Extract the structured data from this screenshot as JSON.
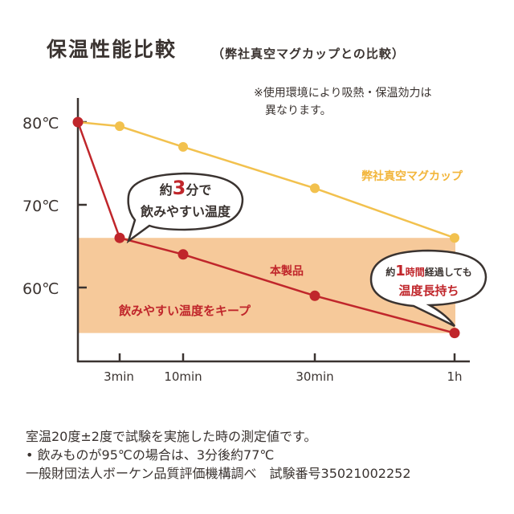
{
  "title": "保温性能比較",
  "subtitle": "（弊社真空マグカップとの比較）",
  "note_lines": [
    "※使用環境により吸熱・保温効力は",
    "異なります。"
  ],
  "colors": {
    "product": "#c0262b",
    "competitor": "#f2c14e",
    "zone": "#f6c99a",
    "axis": "#3a3330"
  },
  "chart_data": {
    "type": "line",
    "title": "保温性能比較",
    "x_categories": [
      "",
      "3min",
      "10min",
      "30min",
      "1h"
    ],
    "y_ticks": [
      "80℃",
      "70℃",
      "60℃"
    ],
    "ylim": [
      54,
      80
    ],
    "series": [
      {
        "name": "弊社真空マグカップ",
        "values": [
          80,
          79.5,
          77,
          72,
          66
        ]
      },
      {
        "name": "本製品",
        "values": [
          80,
          66,
          64,
          59,
          54.5
        ]
      }
    ],
    "zone": {
      "from": 54.5,
      "to": 66,
      "label": "飲みやすい温度をキープ"
    },
    "callout_left": {
      "line1_pre": "約",
      "line1_num": "3",
      "line1_post": "分で",
      "line2": "飲みやすい温度"
    },
    "callout_right": {
      "line1_pre": "約",
      "line1_num": "1",
      "line1_mid": "時間",
      "line1_post": "経過しても",
      "line2": "温度長持ち"
    }
  },
  "footer_lines": [
    "室温20度±2度で試験を実施した時の測定値です。",
    "• 飲みものが95℃の場合は、3分後約77℃",
    "一般財団法人ボーケン品質評価機構調べ　試験番号35021002252"
  ]
}
